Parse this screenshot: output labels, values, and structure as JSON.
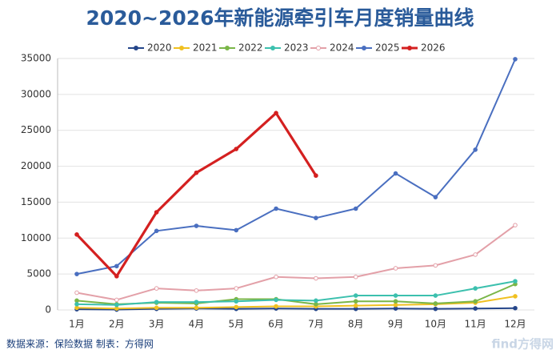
{
  "chart_data": {
    "type": "line",
    "title": "2020~2026年新能源牵引车月度销量曲线",
    "categories": [
      "1月",
      "2月",
      "3月",
      "4月",
      "5月",
      "6月",
      "7月",
      "8月",
      "9月",
      "10月",
      "11月",
      "12月"
    ],
    "series": [
      {
        "name": "2020",
        "color": "#25468a",
        "values": [
          100,
          50,
          150,
          200,
          150,
          200,
          150,
          150,
          200,
          150,
          200,
          250
        ]
      },
      {
        "name": "2021",
        "color": "#f0c020",
        "values": [
          300,
          200,
          300,
          300,
          400,
          500,
          500,
          600,
          700,
          800,
          1000,
          1900
        ]
      },
      {
        "name": "2022",
        "color": "#7ab648",
        "values": [
          1300,
          800,
          1000,
          900,
          1500,
          1500,
          800,
          1200,
          1200,
          900,
          1200,
          3600
        ]
      },
      {
        "name": "2023",
        "color": "#3cc0ae",
        "values": [
          800,
          700,
          1100,
          1100,
          1200,
          1400,
          1300,
          2000,
          2000,
          2000,
          3000,
          4000
        ]
      },
      {
        "name": "2024",
        "color": "#e3a0a8",
        "values": [
          2400,
          1400,
          3000,
          2700,
          3000,
          4600,
          4400,
          4600,
          5800,
          6200,
          7700,
          11800
        ]
      },
      {
        "name": "2025",
        "color": "#4a6fc0",
        "values": [
          5000,
          6100,
          11000,
          11700,
          11100,
          14100,
          12800,
          14100,
          19000,
          15700,
          22300,
          34900
        ]
      },
      {
        "name": "2026",
        "color": "#d42020",
        "values": [
          10500,
          4700,
          13600,
          19100,
          22400,
          27400,
          18700,
          null,
          null,
          null,
          null,
          null
        ]
      }
    ],
    "ylim": [
      0,
      35000
    ],
    "yticks": [
      0,
      5000,
      10000,
      15000,
      20000,
      25000,
      30000,
      35000
    ],
    "grid": true,
    "legend": "top",
    "footer": "数据来源：保险数据   制表：方得网",
    "watermark": "find方得网"
  }
}
